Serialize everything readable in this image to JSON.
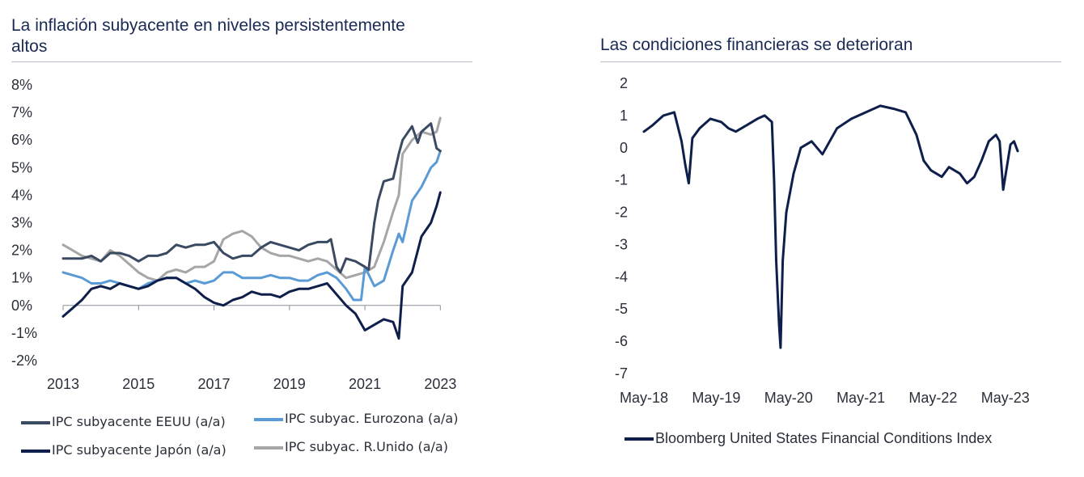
{
  "chart_data": [
    {
      "type": "line",
      "title": "La inflación subyacente en niveles persistentemente altos",
      "title_lines": [
        "La inflación subyacente en niveles persistentemente",
        "altos"
      ],
      "xlabel": "",
      "ylabel": "",
      "xlim": [
        2013,
        2023.1
      ],
      "ylim": [
        -2,
        8
      ],
      "x_ticks": [
        "2013",
        "2015",
        "2017",
        "2019",
        "2021",
        "2023"
      ],
      "y_ticks": [
        "8%",
        "7%",
        "6%",
        "5%",
        "4%",
        "3%",
        "2%",
        "1%",
        "0%",
        "-1%",
        "-2%"
      ],
      "series": [
        {
          "name": "IPC subyacente EEUU (a/a)",
          "color": "#3a4a63",
          "x": [
            2013.0,
            2013.25,
            2013.5,
            2013.75,
            2014.0,
            2014.25,
            2014.5,
            2014.75,
            2015.0,
            2015.25,
            2015.5,
            2015.75,
            2016.0,
            2016.25,
            2016.5,
            2016.75,
            2017.0,
            2017.25,
            2017.5,
            2017.75,
            2018.0,
            2018.25,
            2018.5,
            2018.75,
            2019.0,
            2019.25,
            2019.5,
            2019.75,
            2020.0,
            2020.1,
            2020.25,
            2020.35,
            2020.5,
            2020.75,
            2021.0,
            2021.1,
            2021.25,
            2021.35,
            2021.5,
            2021.75,
            2021.9,
            2022.0,
            2022.25,
            2022.4,
            2022.5,
            2022.75,
            2022.9,
            2023.0
          ],
          "values": [
            1.7,
            1.7,
            1.7,
            1.8,
            1.6,
            1.9,
            1.9,
            1.8,
            1.6,
            1.8,
            1.8,
            1.9,
            2.2,
            2.1,
            2.2,
            2.2,
            2.3,
            1.9,
            1.7,
            1.8,
            1.8,
            2.1,
            2.3,
            2.2,
            2.1,
            2.0,
            2.2,
            2.3,
            2.3,
            2.4,
            1.4,
            1.2,
            1.7,
            1.6,
            1.4,
            1.3,
            3.0,
            3.8,
            4.5,
            4.6,
            5.5,
            6.0,
            6.5,
            5.9,
            6.3,
            6.6,
            5.7,
            5.6
          ]
        },
        {
          "name": "IPC subyac. Eurozona (a/a)",
          "color": "#5b9bd5",
          "x": [
            2013.0,
            2013.25,
            2013.5,
            2013.75,
            2014.0,
            2014.25,
            2014.5,
            2014.75,
            2015.0,
            2015.25,
            2015.5,
            2015.75,
            2016.0,
            2016.25,
            2016.5,
            2016.75,
            2017.0,
            2017.25,
            2017.5,
            2017.75,
            2018.0,
            2018.25,
            2018.5,
            2018.75,
            2019.0,
            2019.25,
            2019.5,
            2019.75,
            2020.0,
            2020.25,
            2020.5,
            2020.7,
            2020.9,
            2021.0,
            2021.25,
            2021.5,
            2021.75,
            2021.9,
            2022.0,
            2022.25,
            2022.5,
            2022.75,
            2022.9,
            2023.0
          ],
          "values": [
            1.2,
            1.1,
            1.0,
            0.8,
            0.8,
            0.9,
            0.8,
            0.7,
            0.6,
            0.8,
            0.9,
            1.0,
            1.0,
            0.8,
            0.9,
            0.8,
            0.9,
            1.2,
            1.2,
            1.0,
            1.0,
            1.0,
            1.1,
            1.0,
            1.0,
            0.9,
            0.9,
            1.1,
            1.2,
            1.0,
            0.6,
            0.2,
            0.2,
            1.4,
            0.7,
            0.9,
            2.0,
            2.6,
            2.3,
            3.8,
            4.3,
            5.0,
            5.2,
            5.6
          ]
        },
        {
          "name": "IPC subyacente Japón (a/a)",
          "color": "#0f1f4b",
          "x": [
            2013.0,
            2013.25,
            2013.5,
            2013.75,
            2014.0,
            2014.25,
            2014.5,
            2014.75,
            2015.0,
            2015.25,
            2015.5,
            2015.75,
            2016.0,
            2016.25,
            2016.5,
            2016.75,
            2017.0,
            2017.25,
            2017.5,
            2017.75,
            2018.0,
            2018.25,
            2018.5,
            2018.75,
            2019.0,
            2019.25,
            2019.5,
            2019.75,
            2020.0,
            2020.25,
            2020.5,
            2020.75,
            2021.0,
            2021.25,
            2021.5,
            2021.75,
            2021.9,
            2022.0,
            2022.25,
            2022.5,
            2022.75,
            2022.9,
            2023.0
          ],
          "values": [
            -0.4,
            -0.1,
            0.2,
            0.6,
            0.7,
            0.6,
            0.8,
            0.7,
            0.6,
            0.7,
            0.9,
            1.0,
            1.0,
            0.8,
            0.6,
            0.3,
            0.1,
            0.0,
            0.2,
            0.3,
            0.5,
            0.4,
            0.4,
            0.3,
            0.5,
            0.6,
            0.6,
            0.7,
            0.8,
            0.4,
            0.0,
            -0.3,
            -0.9,
            -0.7,
            -0.5,
            -0.6,
            -1.2,
            0.7,
            1.2,
            2.5,
            3.0,
            3.6,
            4.1
          ]
        },
        {
          "name": "IPC subyac. R.Unido (a/a)",
          "color": "#a6a6a6",
          "x": [
            2013.0,
            2013.25,
            2013.5,
            2013.75,
            2014.0,
            2014.25,
            2014.5,
            2014.75,
            2015.0,
            2015.25,
            2015.5,
            2015.75,
            2016.0,
            2016.25,
            2016.5,
            2016.75,
            2017.0,
            2017.25,
            2017.5,
            2017.75,
            2018.0,
            2018.25,
            2018.5,
            2018.75,
            2019.0,
            2019.25,
            2019.5,
            2019.75,
            2020.0,
            2020.25,
            2020.5,
            2020.75,
            2021.0,
            2021.25,
            2021.5,
            2021.75,
            2021.9,
            2022.0,
            2022.25,
            2022.5,
            2022.75,
            2022.9,
            2023.0
          ],
          "values": [
            2.2,
            2.0,
            1.8,
            1.7,
            1.6,
            2.0,
            1.8,
            1.5,
            1.2,
            1.0,
            0.9,
            1.2,
            1.3,
            1.2,
            1.4,
            1.4,
            1.6,
            2.4,
            2.6,
            2.7,
            2.5,
            2.1,
            1.9,
            1.8,
            1.8,
            1.7,
            1.6,
            1.7,
            1.6,
            1.3,
            1.0,
            1.1,
            1.2,
            1.4,
            2.3,
            3.4,
            4.0,
            5.5,
            6.0,
            6.3,
            6.2,
            6.3,
            6.8
          ]
        }
      ]
    },
    {
      "type": "line",
      "title": "Las condiciones financieras se deterioran",
      "xlabel": "",
      "ylabel": "",
      "xlim": [
        2018.33,
        2023.5
      ],
      "ylim": [
        -7,
        2
      ],
      "x_ticks": [
        "May-18",
        "May-19",
        "May-20",
        "May-21",
        "May-22",
        "May-23"
      ],
      "y_ticks": [
        "2",
        "1",
        "0",
        "-1",
        "-2",
        "-3",
        "-4",
        "-5",
        "-6",
        "-7"
      ],
      "series": [
        {
          "name": "Bloomberg United States Financial Conditions Index",
          "color": "#0f1f4b",
          "x": [
            2018.33,
            2018.45,
            2018.6,
            2018.75,
            2018.85,
            2018.9,
            2018.95,
            2019.0,
            2019.1,
            2019.25,
            2019.4,
            2019.5,
            2019.6,
            2019.75,
            2019.9,
            2020.0,
            2020.1,
            2020.13,
            2020.16,
            2020.2,
            2020.22,
            2020.25,
            2020.3,
            2020.4,
            2020.5,
            2020.65,
            2020.8,
            2021.0,
            2021.2,
            2021.4,
            2021.6,
            2021.8,
            2021.95,
            2022.1,
            2022.2,
            2022.3,
            2022.45,
            2022.55,
            2022.7,
            2022.8,
            2022.9,
            2023.0,
            2023.1,
            2023.2,
            2023.25,
            2023.3,
            2023.4,
            2023.45,
            2023.5
          ],
          "values": [
            0.5,
            0.7,
            1.0,
            1.1,
            0.2,
            -0.5,
            -1.1,
            0.3,
            0.6,
            0.9,
            0.8,
            0.6,
            0.5,
            0.7,
            0.9,
            1.0,
            0.8,
            -1.0,
            -3.5,
            -5.5,
            -6.2,
            -3.5,
            -2.0,
            -0.8,
            0.0,
            0.2,
            -0.2,
            0.6,
            0.9,
            1.1,
            1.3,
            1.2,
            1.1,
            0.4,
            -0.4,
            -0.7,
            -0.9,
            -0.6,
            -0.8,
            -1.1,
            -0.9,
            -0.4,
            0.2,
            0.4,
            0.2,
            -1.3,
            0.1,
            0.2,
            -0.1
          ]
        }
      ]
    }
  ]
}
